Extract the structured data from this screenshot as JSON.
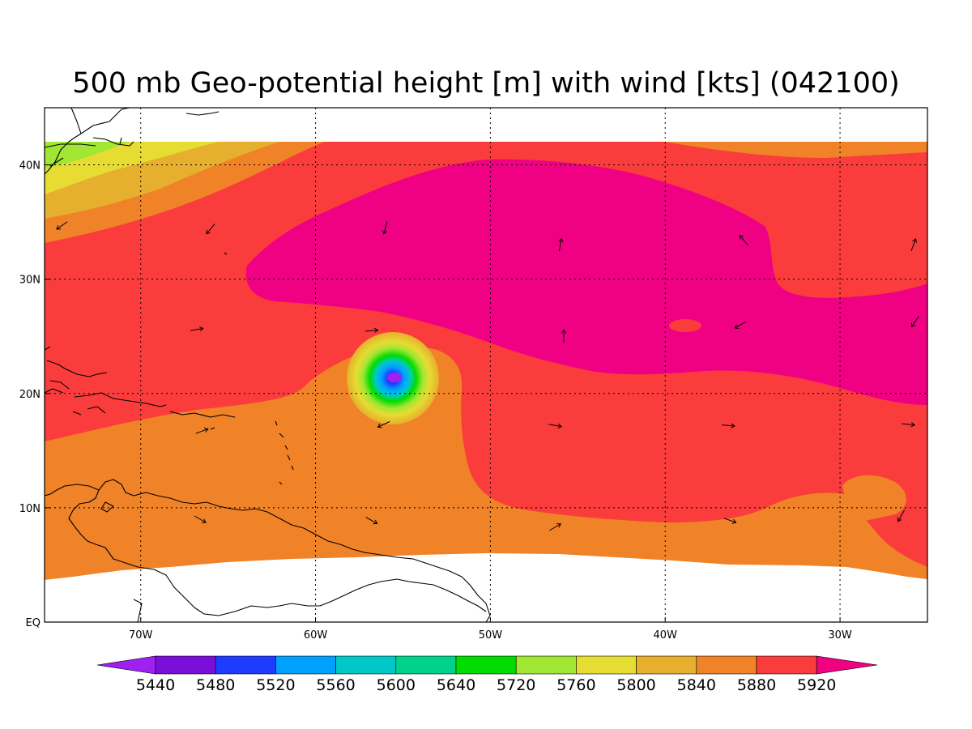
{
  "title": "500 mb Geo-potential height [m] with wind [kts] (042100)",
  "map": {
    "lon_range": [
      -75.5,
      -25.0
    ],
    "lat_range": [
      0,
      45
    ],
    "x_ticks": [
      {
        "lon": -70,
        "label": "70W"
      },
      {
        "lon": -60,
        "label": "60W"
      },
      {
        "lon": -50,
        "label": "50W"
      },
      {
        "lon": -40,
        "label": "40W"
      },
      {
        "lon": -30,
        "label": "30W"
      }
    ],
    "y_ticks": [
      {
        "lat": 0,
        "label": "EQ"
      },
      {
        "lat": 10,
        "label": "10N"
      },
      {
        "lat": 20,
        "label": "20N"
      },
      {
        "lat": 30,
        "label": "30N"
      },
      {
        "lat": 40,
        "label": "40N"
      }
    ],
    "data_lat_range": [
      4,
      42
    ],
    "low_center": {
      "lon": -55.2,
      "lat": 21.4
    },
    "grid_lines": "dotted"
  },
  "colorbar": {
    "levels": [
      "5440",
      "5480",
      "5520",
      "5560",
      "5600",
      "5640",
      "5720",
      "5760",
      "5800",
      "5840",
      "5880",
      "5920"
    ],
    "colors": [
      "#a020f0",
      "#7a10d8",
      "#1e3cff",
      "#00a0ff",
      "#00c8c8",
      "#00d28c",
      "#00dc00",
      "#a0e632",
      "#e6dc32",
      "#e6af2d",
      "#f08228",
      "#fa3c3c",
      "#f00082"
    ]
  },
  "wind_vectors": [
    {
      "lon": -74.5,
      "lat": 34.7,
      "dir": 235
    },
    {
      "lon": -66.0,
      "lat": 34.4,
      "dir": 220
    },
    {
      "lon": -56.0,
      "lat": 34.5,
      "dir": 195
    },
    {
      "lon": -46.0,
      "lat": 33.0,
      "dir": 10
    },
    {
      "lon": -35.5,
      "lat": 33.4,
      "dir": 320
    },
    {
      "lon": -25.8,
      "lat": 33.0,
      "dir": 20
    },
    {
      "lon": -66.8,
      "lat": 25.6,
      "dir": 80
    },
    {
      "lon": -56.8,
      "lat": 25.5,
      "dir": 85
    },
    {
      "lon": -45.8,
      "lat": 25.0,
      "dir": 0
    },
    {
      "lon": -35.7,
      "lat": 26.0,
      "dir": 240
    },
    {
      "lon": -25.7,
      "lat": 26.3,
      "dir": 215
    },
    {
      "lon": -66.5,
      "lat": 16.7,
      "dir": 70
    },
    {
      "lon": -56.1,
      "lat": 17.3,
      "dir": 245
    },
    {
      "lon": -46.3,
      "lat": 17.2,
      "dir": 100
    },
    {
      "lon": -36.4,
      "lat": 17.2,
      "dir": 95
    },
    {
      "lon": -26.1,
      "lat": 17.3,
      "dir": 95
    },
    {
      "lon": -66.6,
      "lat": 9.0,
      "dir": 120
    },
    {
      "lon": -56.8,
      "lat": 8.9,
      "dir": 120
    },
    {
      "lon": -46.3,
      "lat": 8.3,
      "dir": 60
    },
    {
      "lon": -36.3,
      "lat": 8.9,
      "dir": 110
    },
    {
      "lon": -26.5,
      "lat": 9.3,
      "dir": 210
    }
  ]
}
